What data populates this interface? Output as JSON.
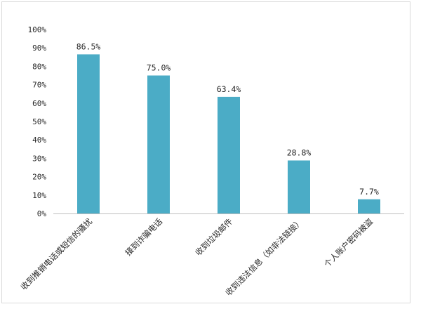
{
  "chart_data": {
    "type": "bar",
    "categories": [
      "收到推销电话或短信的骚扰",
      "接到诈骗电话",
      "收到垃圾邮件",
      "收到违法信息（如非法链接）",
      "个人账户密码被盗"
    ],
    "values": [
      86.5,
      75.0,
      63.4,
      28.8,
      7.7
    ],
    "data_labels": [
      "86.5%",
      "75.0%",
      "63.4%",
      "28.8%",
      "7.7%"
    ],
    "ylim": [
      0,
      100
    ],
    "y_ticks": [
      "0%",
      "10%",
      "20%",
      "30%",
      "40%",
      "50%",
      "60%",
      "70%",
      "80%",
      "90%",
      "100%"
    ],
    "grid": false,
    "legend": "none",
    "bar_color": "#4bacc6",
    "axis_color": "#bfbfbf"
  }
}
